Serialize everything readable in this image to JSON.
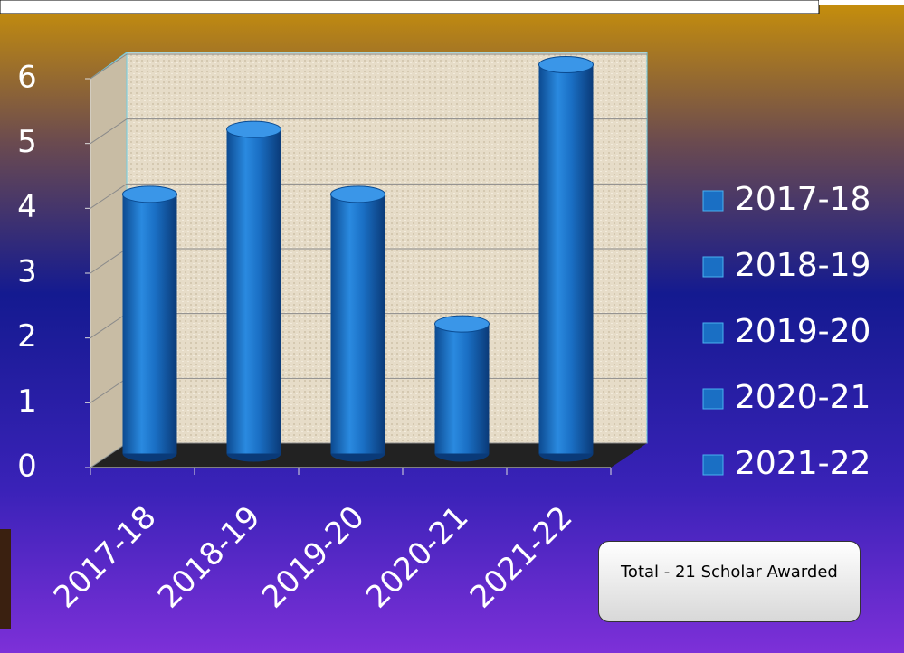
{
  "chart_data": {
    "type": "bar",
    "categories": [
      "2017-18",
      "2018-19",
      "2019-20",
      "2020-21",
      "2021-22"
    ],
    "values": [
      4,
      5,
      4,
      2,
      6
    ],
    "color": "#1a6fc4",
    "ylim": [
      0,
      6
    ],
    "yticks": [
      0,
      1,
      2,
      3,
      4,
      5,
      6
    ],
    "grid": true,
    "legend": "right",
    "annotation": "Total  - 21 Scholar Awarded"
  }
}
